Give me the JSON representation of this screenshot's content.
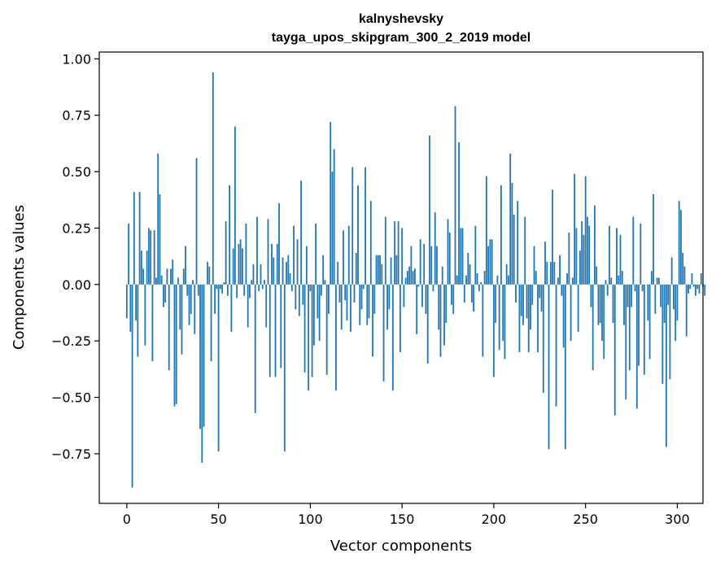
{
  "chart_data": {
    "type": "bar",
    "title": "kalnyshevsky",
    "subtitle": "tayga_upos_skipgram_300_2_2019 model",
    "xlabel": "Vector components",
    "ylabel": "Components values",
    "xlim": [
      -15,
      314
    ],
    "ylim": [
      -0.97,
      1.03
    ],
    "xticks": [
      0,
      50,
      100,
      150,
      200,
      250,
      300
    ],
    "xtick_labels": [
      "0",
      "50",
      "100",
      "150",
      "200",
      "250",
      "300"
    ],
    "yticks": [
      -0.75,
      -0.5,
      -0.25,
      0.0,
      0.25,
      0.5,
      0.75,
      1.0
    ],
    "ytick_labels": [
      "−0.75",
      "−0.50",
      "−0.25",
      "0.00",
      "0.25",
      "0.50",
      "0.75",
      "1.00"
    ],
    "bar_color": "#1f77b4",
    "grid": false,
    "series": [
      {
        "name": "kalnyshevsky",
        "values": [
          -0.15,
          0.27,
          -0.21,
          -0.9,
          0.41,
          -0.16,
          -0.32,
          0.41,
          0.15,
          0.07,
          -0.27,
          0.15,
          0.25,
          0.24,
          -0.34,
          0.24,
          0.03,
          0.58,
          0.4,
          0.04,
          -0.1,
          -0.08,
          0.07,
          -0.38,
          0.07,
          0.11,
          -0.54,
          -0.53,
          0.03,
          -0.2,
          -0.31,
          0.07,
          0.17,
          -0.05,
          -0.18,
          -0.13,
          0.02,
          -0.22,
          0.56,
          -0.05,
          -0.64,
          -0.79,
          -0.63,
          0.0,
          0.1,
          0.08,
          -0.34,
          0.94,
          -0.13,
          -0.02,
          -0.74,
          -0.02,
          -0.04,
          0.01,
          0.28,
          -0.05,
          0.44,
          -0.21,
          0.16,
          0.7,
          -0.06,
          0.18,
          0.2,
          0.16,
          -0.05,
          0.27,
          -0.19,
          -0.06,
          0.02,
          0.09,
          -0.57,
          0.3,
          -0.03,
          0.09,
          -0.02,
          0.02,
          -0.19,
          0.29,
          -0.41,
          0.18,
          0.12,
          -0.41,
          0.18,
          0.36,
          -0.37,
          0.12,
          -0.74,
          0.1,
          0.13,
          0.05,
          -0.03,
          0.26,
          -0.11,
          0.2,
          -0.14,
          0.46,
          -0.09,
          -0.39,
          0.17,
          -0.47,
          -0.03,
          -0.41,
          -0.27,
          0.27,
          -0.15,
          -0.25,
          -0.05,
          0.13,
          0.02,
          -0.4,
          -0.13,
          0.72,
          0.5,
          0.6,
          -0.47,
          0.1,
          -0.08,
          -0.2,
          0.24,
          -0.07,
          -0.16,
          0.26,
          -0.21,
          0.52,
          -0.08,
          0.14,
          0.44,
          -0.18,
          -0.11,
          -0.02,
          0.52,
          -0.18,
          -0.15,
          0.37,
          -0.32,
          -0.13,
          0.13,
          0.13,
          0.13,
          0.09,
          -0.43,
          0.3,
          -0.2,
          -0.11,
          0.12,
          -0.47,
          0.28,
          0.13,
          0.28,
          -0.3,
          0.25,
          -0.1,
          0.03,
          0.06,
          0.08,
          0.17,
          0.06,
          0.07,
          -0.22,
          -0.01,
          0.2,
          -0.1,
          0.18,
          -0.13,
          -0.35,
          0.66,
          0.17,
          -0.03,
          0.32,
          0.17,
          -0.2,
          -0.32,
          0.08,
          -0.27,
          -0.17,
          0.29,
          0.23,
          -0.09,
          -0.13,
          0.79,
          0.04,
          0.63,
          0.25,
          0.25,
          -0.08,
          0.04,
          0.14,
          0.09,
          -0.08,
          -0.12,
          0.26,
          0.05,
          -0.03,
          0.01,
          -0.32,
          0.06,
          0.48,
          0.17,
          0.2,
          0.2,
          -0.41,
          -0.17,
          0.04,
          -0.29,
          0.44,
          -0.25,
          -0.33,
          0.09,
          0.04,
          0.58,
          0.45,
          0.31,
          -0.08,
          0.37,
          -0.3,
          -0.14,
          -0.18,
          0.3,
          -0.15,
          -0.3,
          -0.2,
          -0.09,
          0.17,
          0.06,
          -0.3,
          -0.06,
          -0.12,
          -0.48,
          0.19,
          0.1,
          -0.73,
          0.1,
          0.42,
          0.1,
          -0.54,
          0.03,
          0.13,
          -0.05,
          -0.28,
          -0.73,
          0.05,
          0.23,
          -0.25,
          0.03,
          0.49,
          0.25,
          -0.21,
          0.15,
          0.28,
          0.22,
          0.48,
          0.3,
          0.26,
          -0.1,
          -0.38,
          0.35,
          0.08,
          -0.18,
          -0.17,
          -0.25,
          -0.33,
          0.02,
          -0.05,
          0.26,
          0.03,
          -0.17,
          -0.58,
          0.25,
          0.04,
          0.22,
          0.06,
          -0.18,
          -0.51,
          -0.1,
          -0.38,
          -0.1,
          0.3,
          -0.03,
          -0.55,
          -0.36,
          0.27,
          -0.03,
          -0.4,
          0.0,
          -0.16,
          -0.33,
          0.06,
          0.4,
          -0.13,
          0.03,
          0.03,
          -0.1,
          -0.44,
          -0.17,
          -0.72,
          -0.09,
          -0.42,
          0.12,
          -0.11,
          -0.25,
          -0.16,
          0.37,
          0.33,
          0.14,
          0.08,
          -0.23,
          -0.04,
          -0.02,
          0.05,
          -0.01,
          -0.05,
          -0.02,
          -0.04,
          0.05,
          -0.01,
          -0.05
        ]
      }
    ]
  }
}
